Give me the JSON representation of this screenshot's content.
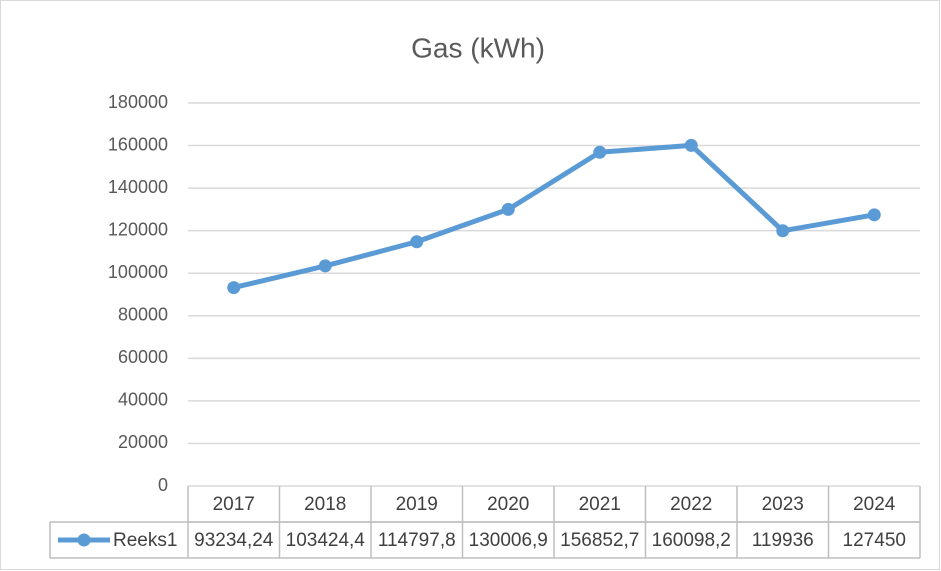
{
  "chart_data": {
    "type": "line",
    "title": "Gas (kWh)",
    "categories": [
      "2017",
      "2018",
      "2019",
      "2020",
      "2021",
      "2022",
      "2023",
      "2024"
    ],
    "series": [
      {
        "name": "Reeks1",
        "color": "#5b9bd5",
        "values": [
          93234.24,
          103424.4,
          114797.8,
          130006.9,
          156852.7,
          160098.2,
          119936,
          127450
        ],
        "value_labels": [
          "93234,24",
          "103424,4",
          "114797,8",
          "130006,9",
          "156852,7",
          "160098,2",
          "119936",
          "127450"
        ]
      }
    ],
    "ylim": [
      0,
      180000
    ],
    "yticks": [
      0,
      20000,
      40000,
      60000,
      80000,
      100000,
      120000,
      140000,
      160000,
      180000
    ],
    "grid": true,
    "data_table": true
  }
}
